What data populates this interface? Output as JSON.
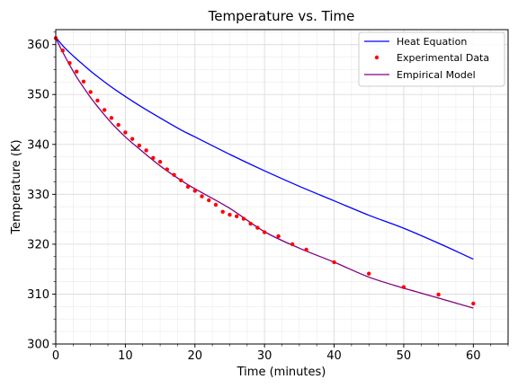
{
  "chart_data": {
    "type": "line",
    "title": "Temperature vs. Time",
    "xlabel": "Time (minutes)",
    "ylabel": "Temperature (K)",
    "xlim": [
      0,
      65
    ],
    "ylim": [
      300,
      363
    ],
    "xticks": [
      0,
      10,
      20,
      30,
      40,
      50,
      60
    ],
    "yticks": [
      300,
      310,
      320,
      330,
      340,
      350,
      360
    ],
    "grid": true,
    "minor_grid": true,
    "legend_position": "top-right",
    "series": [
      {
        "name": "Heat Equation",
        "kind": "line",
        "color": "#0000ff",
        "x": [
          0,
          1,
          2,
          3,
          4,
          5,
          6,
          8,
          10,
          12,
          15,
          18,
          20,
          25,
          30,
          35,
          40,
          45,
          50,
          55,
          60
        ],
        "y": [
          361.5,
          359.8,
          358.4,
          357.1,
          355.9,
          354.7,
          353.6,
          351.5,
          349.6,
          347.8,
          345.3,
          342.9,
          341.5,
          338.0,
          334.7,
          331.6,
          328.7,
          325.8,
          323.2,
          320.2,
          317.0
        ]
      },
      {
        "name": "Experimental Data",
        "kind": "scatter",
        "color": "#ff0000",
        "x": [
          0,
          1,
          2,
          3,
          4,
          5,
          6,
          7,
          8,
          9,
          10,
          11,
          12,
          13,
          14,
          15,
          16,
          17,
          18,
          19,
          20,
          21,
          22,
          23,
          24,
          25,
          26,
          27,
          28,
          29,
          30,
          32,
          34,
          36,
          40,
          45,
          50,
          55,
          60
        ],
        "y": [
          361.3,
          358.8,
          356.3,
          354.6,
          352.6,
          350.5,
          348.8,
          346.9,
          345.3,
          343.9,
          342.4,
          341.1,
          339.8,
          338.8,
          337.3,
          336.5,
          335.0,
          333.9,
          332.8,
          331.5,
          330.7,
          329.6,
          328.8,
          327.9,
          326.5,
          325.9,
          325.6,
          325.1,
          324.1,
          323.3,
          322.4,
          321.6,
          320.0,
          318.9,
          316.4,
          314.1,
          311.4,
          309.9,
          308.1
        ]
      },
      {
        "name": "Empirical Model",
        "kind": "line",
        "color": "#800080",
        "x": [
          0,
          1,
          2,
          3,
          4,
          5,
          6,
          8,
          10,
          12,
          15,
          18,
          20,
          25,
          30,
          35,
          40,
          45,
          50,
          55,
          60
        ],
        "y": [
          361.3,
          358.5,
          355.9,
          353.5,
          351.4,
          349.4,
          347.6,
          344.3,
          341.5,
          339.1,
          335.7,
          332.8,
          331.1,
          327.2,
          322.5,
          319.2,
          316.4,
          313.4,
          311.2,
          309.2,
          307.2
        ]
      }
    ]
  }
}
